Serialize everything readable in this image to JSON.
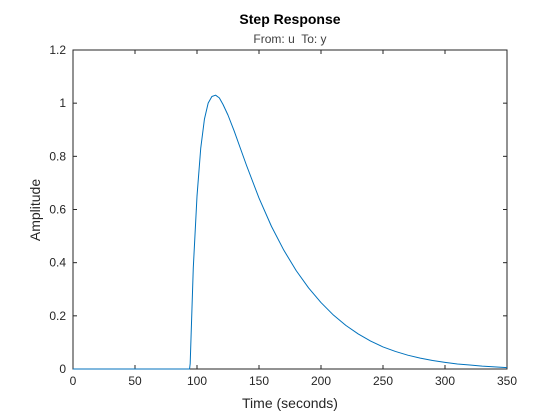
{
  "chart_data": {
    "type": "line",
    "title": "Step Response",
    "subtitle": "From: u  To: y",
    "xlabel": "Time (seconds)",
    "ylabel": "Amplitude",
    "xlim": [
      0,
      350
    ],
    "ylim": [
      0,
      1.2
    ],
    "x_ticks": [
      "0",
      "50",
      "100",
      "150",
      "200",
      "250",
      "300",
      "350"
    ],
    "y_ticks": [
      "0",
      "0.2",
      "0.4",
      "0.6",
      "0.8",
      "1",
      "1.2"
    ],
    "x_tick_values": [
      0,
      50,
      100,
      150,
      200,
      250,
      300,
      350
    ],
    "y_tick_values": [
      0,
      0.2,
      0.4,
      0.6,
      0.8,
      1.0,
      1.2
    ],
    "grid": false,
    "series": [
      {
        "color": "#0072BD",
        "x": [
          0,
          94,
          94.5,
          97,
          100,
          103,
          106,
          109,
          112,
          115,
          118,
          121,
          125,
          130,
          135,
          140,
          150,
          160,
          170,
          180,
          190,
          200,
          210,
          220,
          230,
          240,
          250,
          260,
          270,
          280,
          290,
          300,
          310,
          320,
          330,
          340,
          350
        ],
        "y": [
          0,
          0,
          0.02,
          0.38,
          0.65,
          0.83,
          0.94,
          1.0,
          1.025,
          1.03,
          1.02,
          0.995,
          0.955,
          0.895,
          0.83,
          0.765,
          0.643,
          0.537,
          0.447,
          0.37,
          0.305,
          0.25,
          0.203,
          0.164,
          0.132,
          0.105,
          0.083,
          0.066,
          0.052,
          0.041,
          0.032,
          0.025,
          0.019,
          0.015,
          0.011,
          0.008,
          0.005
        ]
      }
    ]
  }
}
